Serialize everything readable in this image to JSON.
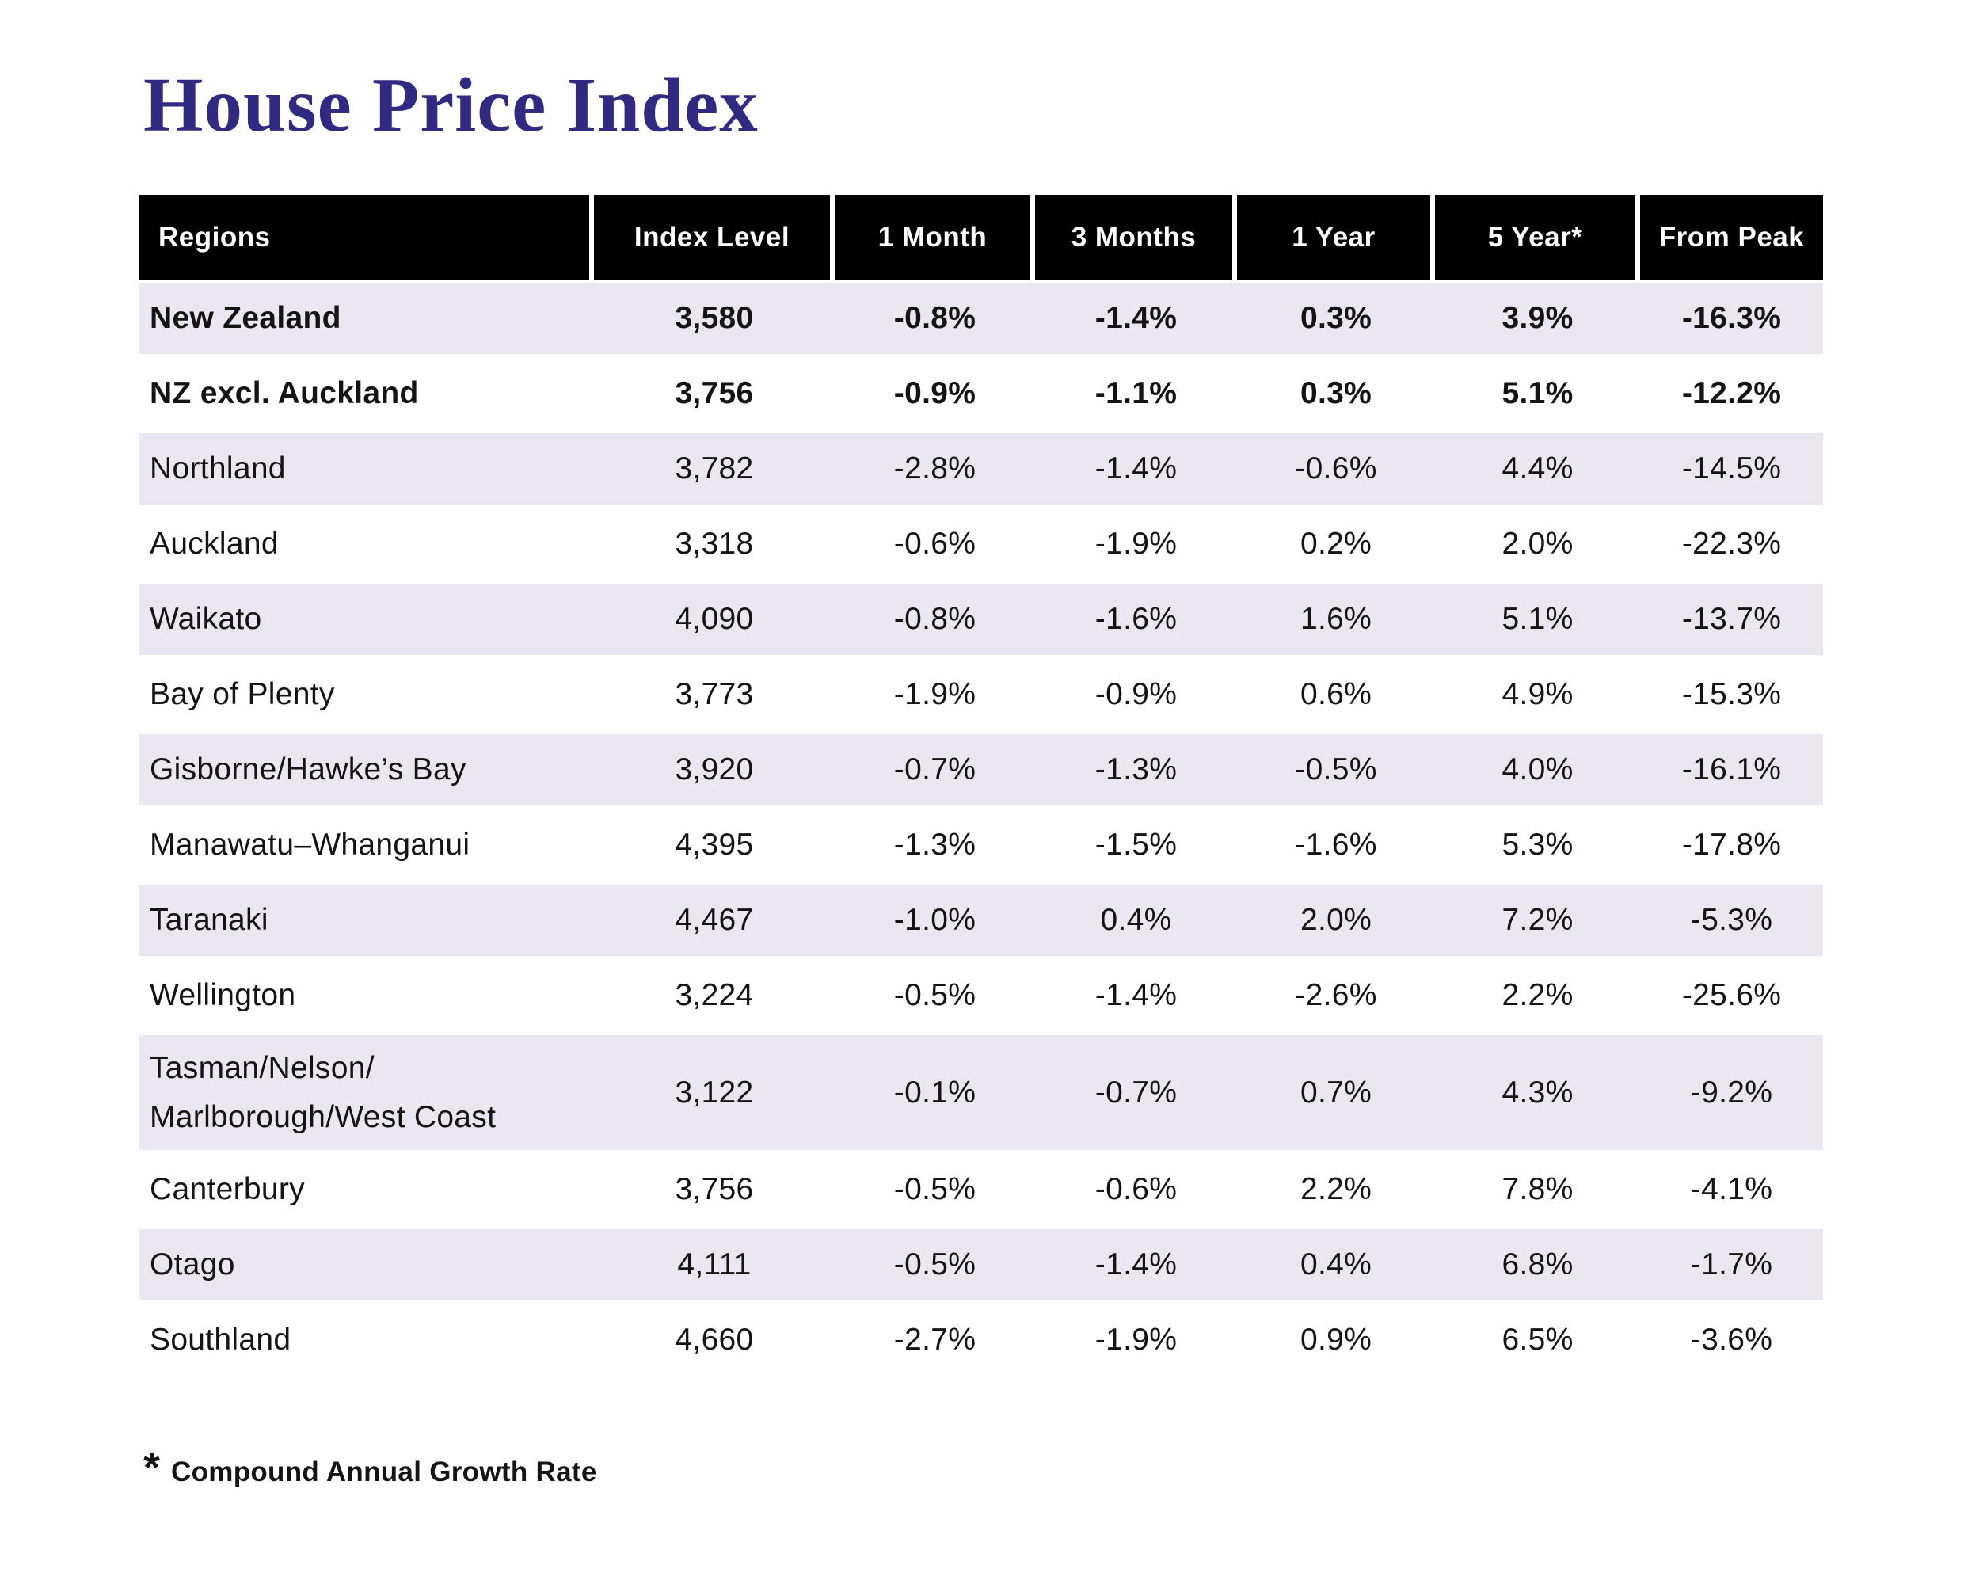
{
  "page": {
    "title": "House Price Index"
  },
  "table": {
    "columns": [
      "Regions",
      "Index Level",
      "1 Month",
      "3 Months",
      "1 Year",
      "5 Year*",
      "From Peak"
    ],
    "rows": [
      {
        "region": "New Zealand",
        "bold": true,
        "values": [
          "3,580",
          "-0.8%",
          "-1.4%",
          "0.3%",
          "3.9%",
          "-16.3%"
        ]
      },
      {
        "region": "NZ excl. Auckland",
        "bold": true,
        "values": [
          "3,756",
          "-0.9%",
          "-1.1%",
          "0.3%",
          "5.1%",
          "-12.2%"
        ]
      },
      {
        "region": "Northland",
        "bold": false,
        "values": [
          "3,782",
          "-2.8%",
          "-1.4%",
          "-0.6%",
          "4.4%",
          "-14.5%"
        ]
      },
      {
        "region": "Auckland",
        "bold": false,
        "values": [
          "3,318",
          "-0.6%",
          "-1.9%",
          "0.2%",
          "2.0%",
          "-22.3%"
        ]
      },
      {
        "region": "Waikato",
        "bold": false,
        "values": [
          "4,090",
          "-0.8%",
          "-1.6%",
          "1.6%",
          "5.1%",
          "-13.7%"
        ]
      },
      {
        "region": "Bay of Plenty",
        "bold": false,
        "values": [
          "3,773",
          "-1.9%",
          "-0.9%",
          "0.6%",
          "4.9%",
          "-15.3%"
        ]
      },
      {
        "region": "Gisborne/Hawke’s Bay",
        "bold": false,
        "values": [
          "3,920",
          "-0.7%",
          "-1.3%",
          "-0.5%",
          "4.0%",
          "-16.1%"
        ]
      },
      {
        "region": "Manawatu–Whanganui",
        "bold": false,
        "values": [
          "4,395",
          "-1.3%",
          "-1.5%",
          "-1.6%",
          "5.3%",
          "-17.8%"
        ]
      },
      {
        "region": "Taranaki",
        "bold": false,
        "values": [
          "4,467",
          "-1.0%",
          "0.4%",
          "2.0%",
          "7.2%",
          "-5.3%"
        ]
      },
      {
        "region": "Wellington",
        "bold": false,
        "values": [
          "3,224",
          "-0.5%",
          "-1.4%",
          "-2.6%",
          "2.2%",
          "-25.6%"
        ]
      },
      {
        "region": "Tasman/Nelson/\nMarlborough/West Coast",
        "bold": false,
        "values": [
          "3,122",
          "-0.1%",
          "-0.7%",
          "0.7%",
          "4.3%",
          "-9.2%"
        ]
      },
      {
        "region": "Canterbury",
        "bold": false,
        "values": [
          "3,756",
          "-0.5%",
          "-0.6%",
          "2.2%",
          "7.8%",
          "-4.1%"
        ]
      },
      {
        "region": "Otago",
        "bold": false,
        "values": [
          "4,111",
          "-0.5%",
          "-1.4%",
          "0.4%",
          "6.8%",
          "-1.7%"
        ]
      },
      {
        "region": "Southland",
        "bold": false,
        "values": [
          "4,660",
          "-2.7%",
          "-1.9%",
          "0.9%",
          "6.5%",
          "-3.6%"
        ]
      }
    ]
  },
  "footnote": {
    "symbol": "*",
    "text": "Compound Annual Growth Rate"
  },
  "colors": {
    "title_text": "#312A81",
    "header_bg": "#000000",
    "header_text": "#FFFFFF",
    "stripe_bg": "#EAE7F3",
    "body_text": "#141414"
  }
}
